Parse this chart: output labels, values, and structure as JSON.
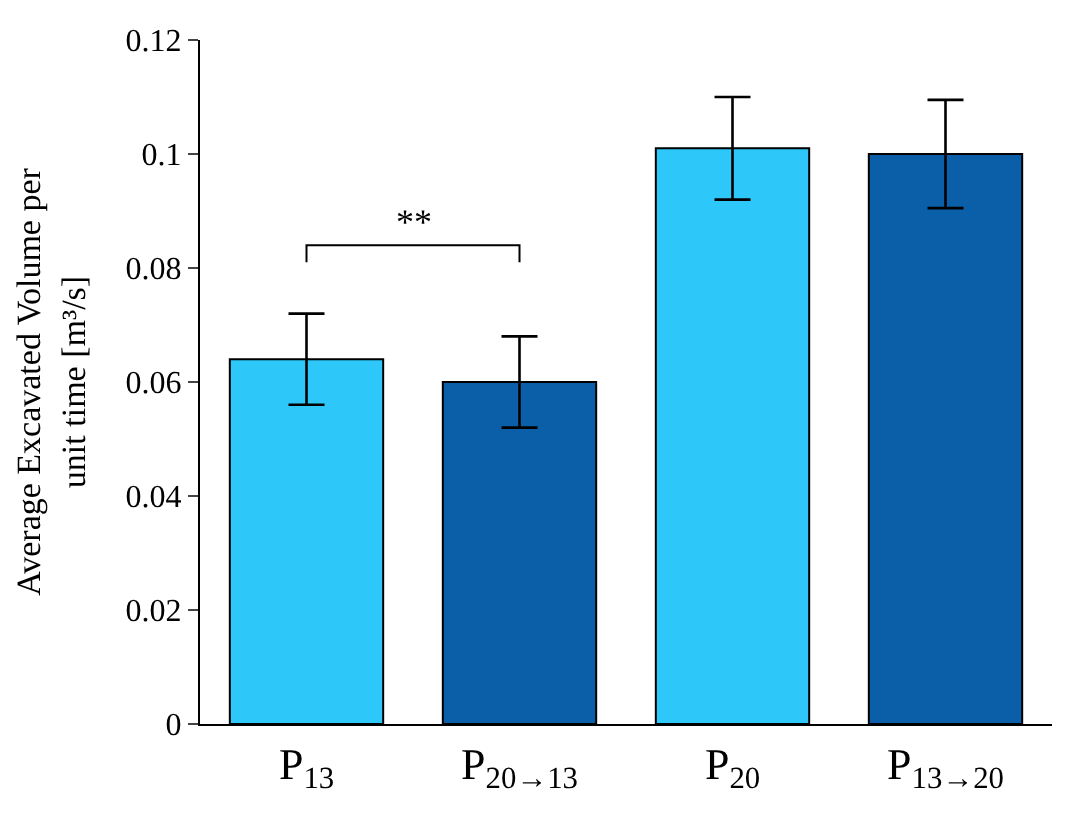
{
  "chart_data": {
    "type": "bar",
    "ylabel": "Average Excavated Volume per unit time [m³/s]",
    "categories": [
      "P$_{13}$",
      "P$_{20→13}$",
      "P$_{20}$",
      "P$_{13→20}$"
    ],
    "values": [
      0.064,
      0.06,
      0.101,
      0.1
    ],
    "colors": [
      "#2ec7fa",
      "#0a5fa8",
      "#2ec7fa",
      "#0a5fa8"
    ],
    "errors": [
      0.008,
      0.008,
      0.009,
      0.0095
    ],
    "ylim": [
      0,
      0.12
    ],
    "yticks": [
      {
        "value": 0,
        "label": "0"
      },
      0.02,
      0.04,
      0.06,
      0.08,
      {
        "value": 0.1,
        "label": "0.1"
      },
      0.12
    ],
    "annotations": [
      "**"
    ]
  }
}
